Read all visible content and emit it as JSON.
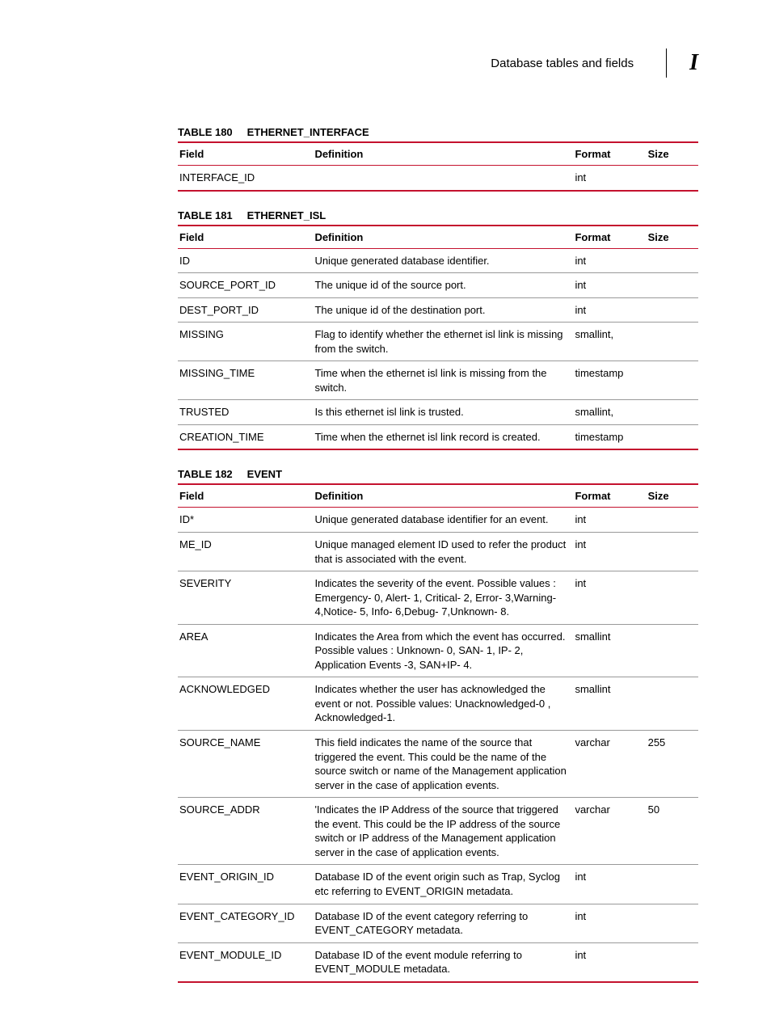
{
  "header": {
    "section_title": "Database tables and fields",
    "appendix": "I"
  },
  "colors": {
    "rule": "#c4122e",
    "row_divider": "#999999",
    "text": "#000000",
    "background": "#ffffff"
  },
  "columns": {
    "field": "Field",
    "definition": "Definition",
    "format": "Format",
    "size": "Size"
  },
  "tables": [
    {
      "number": "TABLE 180",
      "name": "ETHERNET_INTERFACE",
      "rows": [
        {
          "field": "INTERFACE_ID",
          "definition": "",
          "format": "int",
          "size": ""
        }
      ]
    },
    {
      "number": "TABLE 181",
      "name": "ETHERNET_ISL",
      "rows": [
        {
          "field": "ID",
          "definition": "Unique generated database identifier.",
          "format": "int",
          "size": ""
        },
        {
          "field": "SOURCE_PORT_ID",
          "definition": "The unique id of the source port.",
          "format": "int",
          "size": ""
        },
        {
          "field": "DEST_PORT_ID",
          "definition": "The unique id of the destination port.",
          "format": "int",
          "size": ""
        },
        {
          "field": "MISSING",
          "definition": "Flag to identify whether the ethernet isl link is missing from the switch.",
          "format": "smallint,",
          "size": ""
        },
        {
          "field": "MISSING_TIME",
          "definition": "Time when the ethernet isl link is missing from the switch.",
          "format": "timestamp",
          "size": ""
        },
        {
          "field": "TRUSTED",
          "definition": "Is this ethernet isl link is trusted.",
          "format": "smallint,",
          "size": ""
        },
        {
          "field": "CREATION_TIME",
          "definition": "Time when the ethernet isl link record is created.",
          "format": "timestamp",
          "size": ""
        }
      ]
    },
    {
      "number": "TABLE 182",
      "name": "EVENT",
      "rows": [
        {
          "field": "ID*",
          "definition": "Unique generated database identifier for an event.",
          "format": "int",
          "size": ""
        },
        {
          "field": "ME_ID",
          "definition": "Unique managed element ID used to refer the product that is associated with the event.",
          "format": "int",
          "size": ""
        },
        {
          "field": "SEVERITY",
          "definition": "Indicates the severity of the event. Possible values : Emergency- 0, Alert- 1, Critical- 2, Error- 3,Warning- 4,Notice- 5, Info- 6,Debug- 7,Unknown- 8.",
          "format": "int",
          "size": ""
        },
        {
          "field": "AREA",
          "definition": "Indicates the Area from which the event has occurred. Possible values : Unknown- 0, SAN- 1, IP- 2, Application Events -3, SAN+IP- 4.",
          "format": "smallint",
          "size": ""
        },
        {
          "field": "ACKNOWLEDGED",
          "definition": "Indicates whether the user has acknowledged the event or not. Possible values: Unacknowledged-0 , Acknowledged-1.",
          "format": "smallint",
          "size": ""
        },
        {
          "field": "SOURCE_NAME",
          "definition": "This field indicates the name of the source that triggered the event. This could be the name of the source switch or name of the Management application server in the case of application events.",
          "format": "varchar",
          "size": "255"
        },
        {
          "field": "SOURCE_ADDR",
          "definition": "'Indicates the IP Address of the source that triggered the event. This could be the IP address of the source switch or IP address of the Management application server in the case of application events.",
          "format": "varchar",
          "size": "50"
        },
        {
          "field": "EVENT_ORIGIN_ID",
          "definition": "Database ID of the event origin such as Trap, Syclog etc referring to EVENT_ORIGIN metadata.",
          "format": "int",
          "size": ""
        },
        {
          "field": "EVENT_CATEGORY_ID",
          "definition": "Database ID of the event category referring to EVENT_CATEGORY metadata.",
          "format": "int",
          "size": ""
        },
        {
          "field": "EVENT_MODULE_ID",
          "definition": "Database ID of the event module referring to EVENT_MODULE metadata.",
          "format": "int",
          "size": ""
        }
      ]
    }
  ]
}
